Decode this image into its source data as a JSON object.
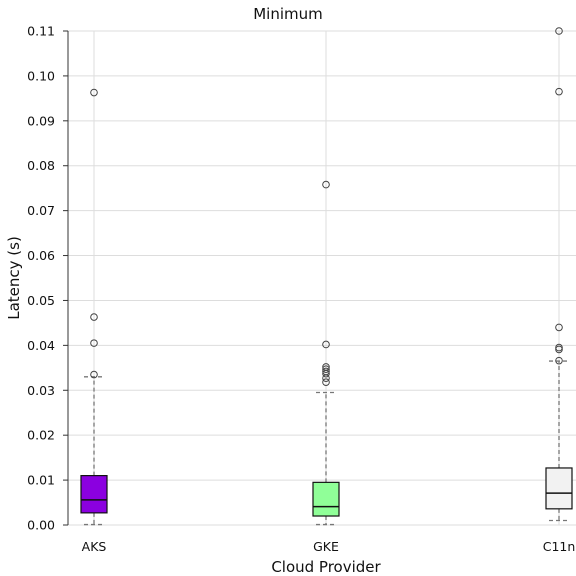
{
  "chart_data": {
    "type": "box",
    "title": "Minimum",
    "xlabel": "Cloud Provider",
    "ylabel": "Latency (s)",
    "ylim": [
      0,
      0.11
    ],
    "yticks": [
      "0.00",
      "0.01",
      "0.02",
      "0.03",
      "0.04",
      "0.05",
      "0.06",
      "0.07",
      "0.08",
      "0.09",
      "0.10",
      "0.11"
    ],
    "grid": true,
    "categories": [
      "AKS",
      "GKE",
      "C11n"
    ],
    "boxes": [
      {
        "name": "AKS",
        "color": "#8B00E0",
        "whisker_low": 0.0001,
        "q1": 0.0027,
        "median": 0.0056,
        "q3": 0.011,
        "whisker_high": 0.033,
        "outliers": [
          0.0335,
          0.0405,
          0.0463,
          0.0963
        ]
      },
      {
        "name": "GKE",
        "color": "#90FF98",
        "whisker_low": 0.0001,
        "q1": 0.002,
        "median": 0.0041,
        "q3": 0.0095,
        "whisker_high": 0.0295,
        "outliers": [
          0.0318,
          0.0327,
          0.0337,
          0.0342,
          0.0347,
          0.0352,
          0.0402,
          0.0758
        ]
      },
      {
        "name": "C11n",
        "color": "#F2F2F2",
        "whisker_low": 0.001,
        "q1": 0.0036,
        "median": 0.0071,
        "q3": 0.0127,
        "whisker_high": 0.0365,
        "outliers": [
          0.0366,
          0.0391,
          0.0395,
          0.044,
          0.0965,
          0.11
        ]
      }
    ]
  }
}
